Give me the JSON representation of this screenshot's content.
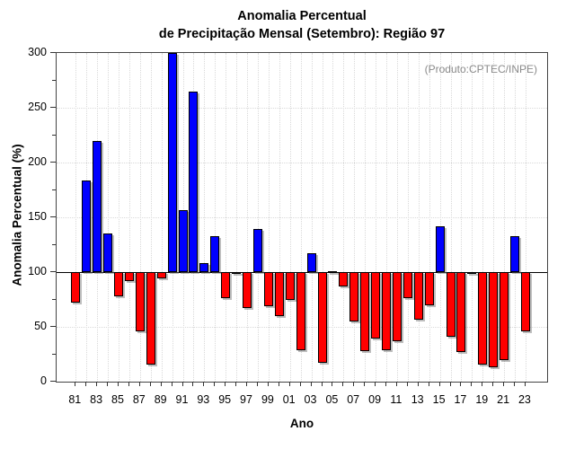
{
  "header": {
    "title_line1": "Anomalia Percentual",
    "title_line2": "de Precipitação Mensal (Setembro): Região 97"
  },
  "annotation": {
    "text": "(Produto:CPTEC/INPE)",
    "color": "#8a8a8a"
  },
  "chart_data": {
    "type": "bar",
    "title": "Anomalia Percentual de Precipitação Mensal (Setembro): Região 97",
    "xlabel": "Ano",
    "ylabel": "Anomalia Percentual (%)",
    "ylim": [
      0,
      300
    ],
    "yticks_major": [
      0,
      50,
      100,
      150,
      200,
      250,
      300
    ],
    "yticks_minor": [
      25,
      75,
      125,
      175,
      225,
      275
    ],
    "baseline": 100,
    "grid": true,
    "legend": "none",
    "bar_color_above_baseline": "#0000ff",
    "bar_color_below_baseline": "#ff0000",
    "categories": [
      "81",
      "82",
      "83",
      "84",
      "85",
      "86",
      "87",
      "88",
      "89",
      "90",
      "91",
      "92",
      "93",
      "94",
      "95",
      "96",
      "97",
      "98",
      "99",
      "00",
      "01",
      "02",
      "03",
      "04",
      "05",
      "06",
      "07",
      "08",
      "09",
      "10",
      "11",
      "12",
      "13",
      "14",
      "15",
      "16",
      "17",
      "18",
      "19",
      "20",
      "21",
      "22",
      "23"
    ],
    "values": [
      72,
      184,
      220,
      135,
      78,
      92,
      46,
      16,
      94,
      300,
      157,
      265,
      108,
      133,
      76,
      98,
      67,
      139,
      69,
      60,
      75,
      29,
      117,
      17,
      101,
      87,
      55,
      28,
      39,
      29,
      37,
      76,
      57,
      70,
      142,
      41,
      27,
      100,
      16,
      13,
      20,
      133,
      46
    ]
  }
}
